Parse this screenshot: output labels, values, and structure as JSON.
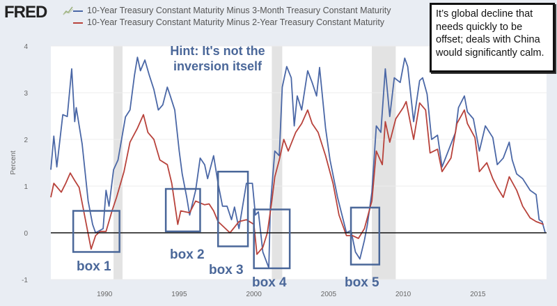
{
  "header": {
    "logo": "FRED",
    "legend": [
      {
        "label": "10-Year Treasury Constant Maturity Minus 3-Month Treasury Constant Maturity",
        "color": "#4a67a6"
      },
      {
        "label": "10-Year Treasury Constant Maturity Minus 2-Year Treasury Constant Maturity",
        "color": "#b8423b"
      }
    ]
  },
  "annotations": {
    "hint": "Hint: It's not the inversion itself",
    "callout": "It’s global decline that needs quickly to be offset; deals with China would significantly calm.",
    "boxes": [
      {
        "label": "box 1",
        "x0": 1987.9,
        "x1": 1991.0,
        "y0": -0.41,
        "y1": 0.47
      },
      {
        "label": "box 2",
        "x0": 1994.1,
        "x1": 1996.4,
        "y0": 0.03,
        "y1": 0.94
      },
      {
        "label": "box 3",
        "x0": 1997.6,
        "x1": 1999.6,
        "y0": -0.29,
        "y1": 1.31
      },
      {
        "label": "box 4",
        "x0": 2000.0,
        "x1": 2002.4,
        "y0": -0.76,
        "y1": 0.5
      },
      {
        "label": "box 5",
        "x0": 2006.5,
        "x1": 2008.4,
        "y0": -0.68,
        "y1": 0.54
      }
    ]
  },
  "chart_data": {
    "type": "line",
    "title": "",
    "xlabel": "",
    "ylabel": "Percent",
    "xlim": [
      1986.4,
      2019.6
    ],
    "ylim": [
      -1,
      4
    ],
    "xticks": [
      1990,
      1995,
      2000,
      2005,
      2010,
      2015
    ],
    "yticks": [
      -1,
      0,
      1,
      2,
      3,
      4
    ],
    "grid": true,
    "zero_line": true,
    "recessions": [
      [
        1990.6,
        1991.2
      ],
      [
        2001.2,
        2001.9
      ],
      [
        2007.9,
        2009.5
      ]
    ],
    "series": [
      {
        "name": "10-Year Treasury Constant Maturity Minus 3-Month Treasury Constant Maturity",
        "color": "#4a67a6",
        "points": [
          [
            1986.4,
            1.35
          ],
          [
            1986.6,
            2.07
          ],
          [
            1986.8,
            1.41
          ],
          [
            1987.2,
            2.53
          ],
          [
            1987.5,
            2.49
          ],
          [
            1987.8,
            3.51
          ],
          [
            1988.0,
            2.38
          ],
          [
            1988.1,
            2.68
          ],
          [
            1988.5,
            1.9
          ],
          [
            1988.9,
            0.68
          ],
          [
            1989.2,
            0.18
          ],
          [
            1989.4,
            0.0
          ],
          [
            1989.9,
            0.09
          ],
          [
            1990.1,
            0.91
          ],
          [
            1990.3,
            0.57
          ],
          [
            1990.6,
            1.35
          ],
          [
            1990.9,
            1.56
          ],
          [
            1991.4,
            2.48
          ],
          [
            1991.7,
            2.63
          ],
          [
            1992.0,
            3.37
          ],
          [
            1992.2,
            3.76
          ],
          [
            1992.4,
            3.47
          ],
          [
            1992.7,
            3.7
          ],
          [
            1993.0,
            3.37
          ],
          [
            1993.3,
            3.07
          ],
          [
            1993.6,
            2.63
          ],
          [
            1993.9,
            2.74
          ],
          [
            1994.2,
            3.12
          ],
          [
            1994.4,
            2.93
          ],
          [
            1994.7,
            2.63
          ],
          [
            1995.0,
            1.75
          ],
          [
            1995.2,
            1.26
          ],
          [
            1995.5,
            0.76
          ],
          [
            1995.7,
            0.38
          ],
          [
            1996.1,
            0.91
          ],
          [
            1996.4,
            1.6
          ],
          [
            1996.7,
            1.46
          ],
          [
            1996.9,
            1.16
          ],
          [
            1997.3,
            1.65
          ],
          [
            1997.6,
            1.06
          ],
          [
            1997.9,
            0.57
          ],
          [
            1998.2,
            0.57
          ],
          [
            1998.5,
            0.28
          ],
          [
            1998.7,
            0.55
          ],
          [
            1999.0,
            0.09
          ],
          [
            1999.5,
            1.06
          ],
          [
            1999.9,
            1.06
          ],
          [
            2000.1,
            0.38
          ],
          [
            2000.3,
            0.45
          ],
          [
            2000.6,
            -0.41
          ],
          [
            2001.0,
            -0.75
          ],
          [
            2001.1,
            0.57
          ],
          [
            2001.4,
            1.75
          ],
          [
            2001.7,
            1.65
          ],
          [
            2001.9,
            3.12
          ],
          [
            2002.2,
            3.56
          ],
          [
            2002.5,
            3.32
          ],
          [
            2002.7,
            2.29
          ],
          [
            2002.9,
            2.93
          ],
          [
            2003.2,
            2.63
          ],
          [
            2003.6,
            3.47
          ],
          [
            2003.9,
            3.22
          ],
          [
            2004.2,
            2.93
          ],
          [
            2004.4,
            3.54
          ],
          [
            2004.8,
            2.24
          ],
          [
            2005.1,
            1.56
          ],
          [
            2005.6,
            0.76
          ],
          [
            2005.9,
            0.38
          ],
          [
            2006.2,
            0.0
          ],
          [
            2006.5,
            0.05
          ],
          [
            2006.8,
            -0.41
          ],
          [
            2007.1,
            -0.56
          ],
          [
            2007.4,
            -0.16
          ],
          [
            2007.6,
            0.18
          ],
          [
            2007.9,
            0.87
          ],
          [
            2008.2,
            2.29
          ],
          [
            2008.5,
            2.15
          ],
          [
            2008.8,
            3.51
          ],
          [
            2009.1,
            2.49
          ],
          [
            2009.4,
            3.32
          ],
          [
            2009.8,
            3.22
          ],
          [
            2010.1,
            3.74
          ],
          [
            2010.3,
            3.56
          ],
          [
            2010.7,
            2.38
          ],
          [
            2011.1,
            3.26
          ],
          [
            2011.3,
            3.32
          ],
          [
            2011.6,
            2.97
          ],
          [
            2011.9,
            2.0
          ],
          [
            2012.3,
            2.09
          ],
          [
            2012.6,
            1.41
          ],
          [
            2013.2,
            1.9
          ],
          [
            2013.5,
            2.15
          ],
          [
            2013.7,
            2.68
          ],
          [
            2014.1,
            2.93
          ],
          [
            2014.3,
            2.59
          ],
          [
            2014.7,
            2.44
          ],
          [
            2015.1,
            1.75
          ],
          [
            2015.5,
            2.29
          ],
          [
            2016.0,
            2.04
          ],
          [
            2016.3,
            1.46
          ],
          [
            2016.7,
            1.6
          ],
          [
            2017.1,
            1.94
          ],
          [
            2017.3,
            1.56
          ],
          [
            2017.6,
            1.26
          ],
          [
            2018.0,
            1.16
          ],
          [
            2018.5,
            0.91
          ],
          [
            2018.9,
            0.82
          ],
          [
            2019.1,
            0.28
          ],
          [
            2019.3,
            0.24
          ],
          [
            2019.5,
            0.01
          ]
        ]
      },
      {
        "name": "10-Year Treasury Constant Maturity Minus 2-Year Treasury Constant Maturity",
        "color": "#b8423b",
        "points": [
          [
            1986.4,
            0.76
          ],
          [
            1986.6,
            1.06
          ],
          [
            1987.1,
            0.87
          ],
          [
            1987.4,
            1.06
          ],
          [
            1987.7,
            1.28
          ],
          [
            1988.0,
            1.12
          ],
          [
            1988.3,
            0.97
          ],
          [
            1988.6,
            0.47
          ],
          [
            1989.1,
            -0.35
          ],
          [
            1989.4,
            -0.06
          ],
          [
            1989.7,
            0.03
          ],
          [
            1990.1,
            0.03
          ],
          [
            1990.5,
            0.47
          ],
          [
            1990.8,
            0.76
          ],
          [
            1991.3,
            1.31
          ],
          [
            1991.7,
            1.94
          ],
          [
            1992.2,
            2.24
          ],
          [
            1992.6,
            2.53
          ],
          [
            1992.9,
            2.15
          ],
          [
            1993.3,
            2.0
          ],
          [
            1993.7,
            1.56
          ],
          [
            1994.2,
            1.46
          ],
          [
            1994.5,
            1.06
          ],
          [
            1994.9,
            0.18
          ],
          [
            1995.1,
            0.47
          ],
          [
            1995.7,
            0.43
          ],
          [
            1996.1,
            0.68
          ],
          [
            1996.7,
            0.6
          ],
          [
            1997.0,
            0.62
          ],
          [
            1997.3,
            0.47
          ],
          [
            1997.6,
            0.24
          ],
          [
            1998.4,
            0.0
          ],
          [
            1999.0,
            0.24
          ],
          [
            1999.5,
            0.28
          ],
          [
            2000.0,
            0.18
          ],
          [
            2000.2,
            -0.46
          ],
          [
            2000.6,
            -0.31
          ],
          [
            2000.9,
            0.0
          ],
          [
            2001.2,
            0.68
          ],
          [
            2001.4,
            1.2
          ],
          [
            2001.7,
            1.56
          ],
          [
            2002.0,
            2.0
          ],
          [
            2002.3,
            1.75
          ],
          [
            2002.8,
            2.15
          ],
          [
            2003.2,
            2.34
          ],
          [
            2003.6,
            2.63
          ],
          [
            2003.9,
            2.34
          ],
          [
            2004.3,
            2.15
          ],
          [
            2004.8,
            1.65
          ],
          [
            2005.3,
            1.06
          ],
          [
            2005.7,
            0.38
          ],
          [
            2006.2,
            -0.06
          ],
          [
            2006.6,
            -0.06
          ],
          [
            2007.0,
            -0.12
          ],
          [
            2007.4,
            0.09
          ],
          [
            2007.9,
            0.68
          ],
          [
            2008.2,
            1.75
          ],
          [
            2008.6,
            1.46
          ],
          [
            2008.8,
            2.38
          ],
          [
            2009.1,
            1.94
          ],
          [
            2009.5,
            2.44
          ],
          [
            2010.0,
            2.68
          ],
          [
            2010.2,
            2.81
          ],
          [
            2010.7,
            2.0
          ],
          [
            2011.1,
            2.78
          ],
          [
            2011.5,
            2.63
          ],
          [
            2011.8,
            1.71
          ],
          [
            2012.3,
            1.79
          ],
          [
            2012.6,
            1.31
          ],
          [
            2013.2,
            1.6
          ],
          [
            2013.6,
            2.34
          ],
          [
            2014.1,
            2.63
          ],
          [
            2014.3,
            2.34
          ],
          [
            2014.8,
            2.04
          ],
          [
            2015.1,
            1.31
          ],
          [
            2015.6,
            1.5
          ],
          [
            2016.0,
            1.16
          ],
          [
            2016.3,
            0.97
          ],
          [
            2016.7,
            0.76
          ],
          [
            2017.1,
            1.2
          ],
          [
            2017.6,
            0.91
          ],
          [
            2018.0,
            0.57
          ],
          [
            2018.5,
            0.32
          ],
          [
            2018.9,
            0.24
          ],
          [
            2019.4,
            0.18
          ]
        ]
      }
    ]
  }
}
